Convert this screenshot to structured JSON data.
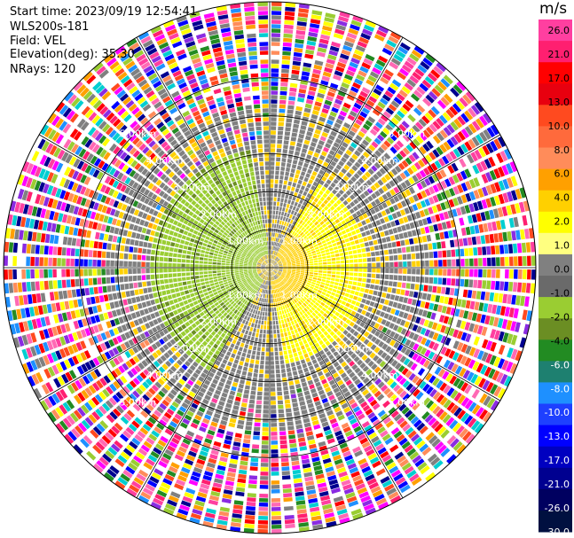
{
  "header": {
    "start_time": "Start time: 2023/09/19 12:54:41",
    "instrument": "WLS200s-181",
    "field": "Field: VEL",
    "elevation": "Elevation(deg): 35.30",
    "nrays": "NRays: 120"
  },
  "colorbar": {
    "unit": "m/s",
    "ticks": [
      "26.0",
      "21.0",
      "17.0",
      "13.0",
      "10.0",
      "8.0",
      "6.0",
      "4.0",
      "2.0",
      "1.0",
      "0.0",
      "-1.0",
      "-2.0",
      "-4.0",
      "-6.0",
      "-8.0",
      "-10.0",
      "-13.0",
      "-17.0",
      "-21.0",
      "-26.0",
      "-30.0"
    ],
    "colors": [
      "#ff3fa0",
      "#ff1f70",
      "#ff0000",
      "#e8000f",
      "#ff4a1f",
      "#ff6a3c",
      "#ff8c5a",
      "#ffa000",
      "#ffd000",
      "#ffff00",
      "#ffff80",
      "#808080",
      "#6a6a6a",
      "#9acd32",
      "#6b8e23",
      "#228b22",
      "#1e8070",
      "#1e90ff",
      "#1e40ff",
      "#0000ff",
      "#0000c0",
      "#000090",
      "#000060",
      "#001040"
    ]
  },
  "chart_data": {
    "type": "ppi",
    "field": "VEL",
    "units": "m/s",
    "elevation_deg": 35.3,
    "nrays": 120,
    "range_rings": [
      {
        "label": "1.00km",
        "range_km": 1.0
      },
      {
        "label": "2.00km",
        "range_km": 2.0
      },
      {
        "label": "3.00km",
        "range_km": 3.0
      },
      {
        "label": "4.00km",
        "range_km": 4.0
      },
      {
        "label": "5.00km",
        "range_km": 5.0
      }
    ],
    "spoke_angles_deg": [
      0,
      30,
      60,
      90,
      120,
      150,
      180,
      210,
      240,
      270,
      300,
      330
    ],
    "max_range_km": 7.0
  }
}
